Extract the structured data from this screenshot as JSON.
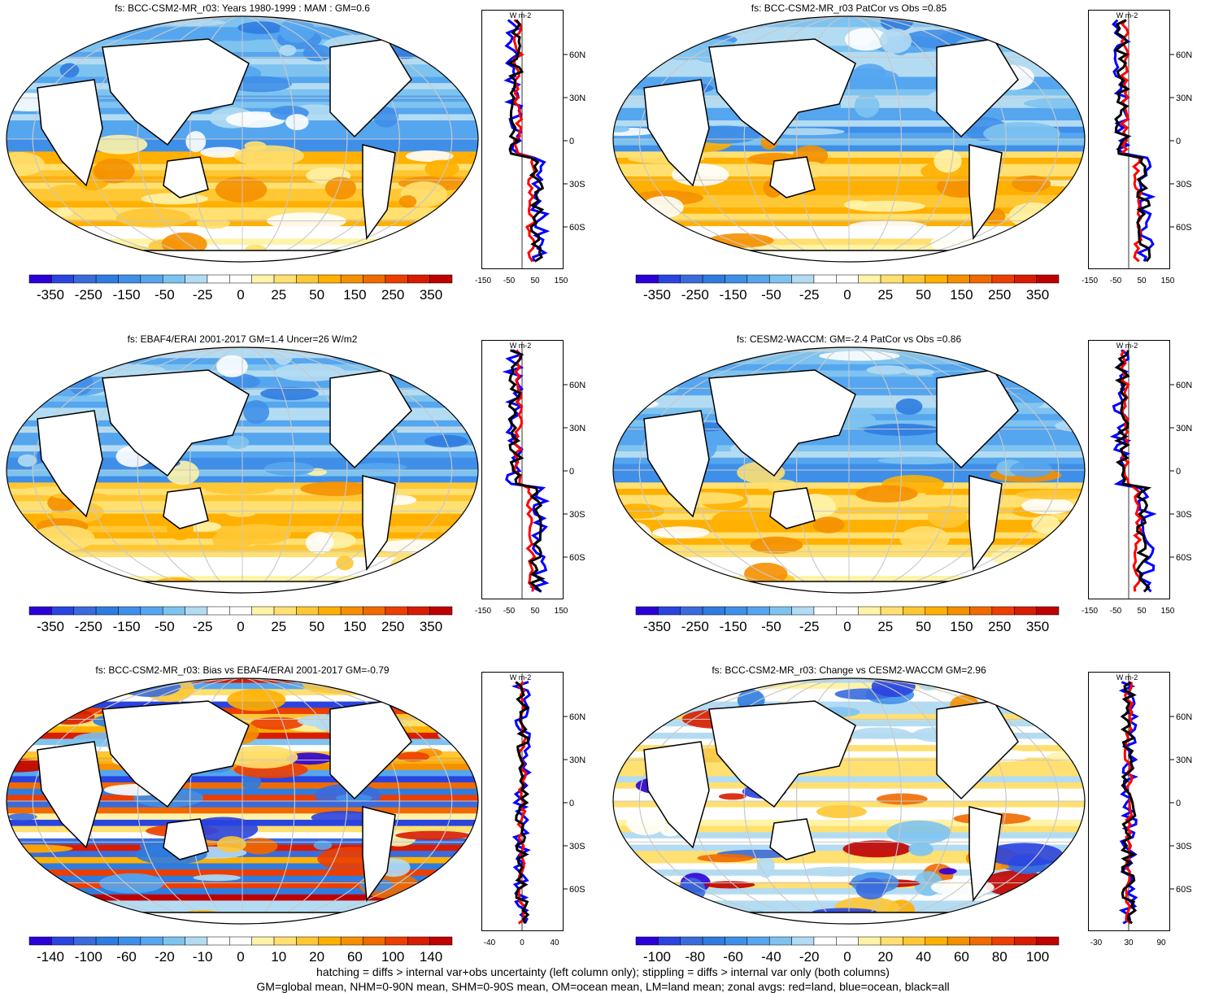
{
  "panels": [
    {
      "title": "fs: BCC-CSM2-MR_r03: Years 1980-1999 : MAM : GM=0.6",
      "colorbar_labels": [
        "-350",
        "-250",
        "-150",
        "-50",
        "-25",
        "0",
        "25",
        "50",
        "150",
        "250",
        "350"
      ],
      "zonal_xticks": [
        "-150",
        "-50",
        "50",
        "150"
      ]
    },
    {
      "title": "fs: BCC-CSM2-MR_r03 PatCor vs Obs =0.85",
      "colorbar_labels": [
        "-350",
        "-250",
        "-150",
        "-50",
        "-25",
        "0",
        "25",
        "50",
        "150",
        "250",
        "350"
      ],
      "zonal_xticks": [
        "-150",
        "-50",
        "50",
        "150"
      ]
    },
    {
      "title": "fs: EBAF4/ERAI 2001-2017 GM=1.4 Uncer=26 W/m2",
      "colorbar_labels": [
        "-350",
        "-250",
        "-150",
        "-50",
        "-25",
        "0",
        "25",
        "50",
        "150",
        "250",
        "350"
      ],
      "zonal_xticks": [
        "-150",
        "-50",
        "50",
        "150"
      ]
    },
    {
      "title": "fs: CESM2-WACCM: GM=-2.4 PatCor vs Obs =0.86",
      "colorbar_labels": [
        "-350",
        "-250",
        "-150",
        "-50",
        "-25",
        "0",
        "25",
        "50",
        "150",
        "250",
        "350"
      ],
      "zonal_xticks": [
        "-150",
        "-50",
        "50",
        "150"
      ]
    },
    {
      "title": "fs: BCC-CSM2-MR_r03: Bias vs EBAF4/ERAI 2001-2017 GM=-0.79",
      "colorbar_labels": [
        "-140",
        "-100",
        "-60",
        "-20",
        "-10",
        "0",
        "10",
        "20",
        "60",
        "100",
        "140"
      ],
      "zonal_xticks": [
        "-40",
        "0",
        "40"
      ]
    },
    {
      "title": "fs: BCC-CSM2-MR_r03: Change vs CESM2-WACCM GM=2.96",
      "colorbar_labels": [
        "-100",
        "-80",
        "-60",
        "-40",
        "-20",
        "0",
        "20",
        "40",
        "60",
        "80",
        "100"
      ],
      "zonal_xticks": [
        "-30",
        "30",
        "90"
      ]
    }
  ],
  "zonal_unit": "W m-2",
  "zonal_lat_labels": [
    "60N",
    "30N",
    "0",
    "30S",
    "60S"
  ],
  "colors": {
    "levels": [
      "#2c00d8",
      "#2a44e0",
      "#3a6bdd",
      "#2f7ce0",
      "#3f8fe8",
      "#55a6ef",
      "#7ec3f0",
      "#b3dcf3",
      "#ffffff",
      "#ffffff",
      "#fff3a8",
      "#ffe070",
      "#ffc733",
      "#ffb000",
      "#f59000",
      "#f06a00",
      "#ec3e00",
      "#d81c00",
      "#c00000"
    ],
    "land_line": "#000000",
    "zonal_land": "#ff0000",
    "zonal_ocean": "#0000ff",
    "zonal_all": "#000000"
  },
  "footer": {
    "line1": "hatching = diffs > internal var+obs uncertainty (left column only); stippling = diffs > internal var only (both columns)",
    "line2": "GM=global mean, NHM=0-90N mean, SHM=0-90S mean, OM=ocean mean, LM=land mean; zonal avgs: red=land, blue=ocean, black=all"
  }
}
